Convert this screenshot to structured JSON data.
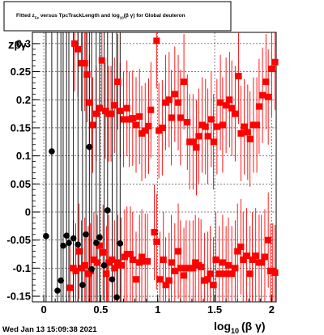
{
  "title": {
    "main": "Fitted  z",
    "sub": "Fe",
    "rest1": "  versus TpcTrackLength and log",
    "sub2": "10",
    "rest2": "(β γ) for Global deuteron"
  },
  "timestamp": "Wed Jan 13 15:09:38 2021",
  "colors": {
    "red": "#ff0000",
    "black": "#000000"
  },
  "chart_data": {
    "type": "scatter",
    "xlabel": "log10(β γ)",
    "xlabel_main": "log",
    "xlabel_sub": "10",
    "xlabel_rest": "(β γ)",
    "ylabel_main": "z",
    "ylabel_rest": "βγ",
    "xlim": [
      -0.1,
      2.04
    ],
    "ylim": [
      -0.16,
      0.32
    ],
    "x_ticks": [
      "0",
      "0.5",
      "1",
      "1.5",
      "2"
    ],
    "x_tick_values": [
      0,
      0.5,
      1,
      1.5,
      2
    ],
    "y_ticks": [
      "-0.15",
      "-0.1",
      "-0.05",
      "0",
      "0.05",
      "0.1",
      "0.15",
      "0.2",
      "0.25",
      "0.3"
    ],
    "y_tick_values": [
      -0.15,
      -0.1,
      -0.05,
      0,
      0.05,
      0.1,
      0.15,
      0.2,
      0.25,
      0.3
    ],
    "series": [
      {
        "color": "red",
        "points": [
          [
            0.27,
            0.3
          ],
          [
            0.3,
            0.29
          ],
          [
            0.33,
            0.265
          ],
          [
            0.36,
            0.265
          ],
          [
            0.38,
            0.245
          ],
          [
            0.4,
            0.195
          ],
          [
            0.43,
            0.155
          ],
          [
            0.46,
            0.175
          ],
          [
            0.49,
            0.185
          ],
          [
            0.51,
            0.27
          ],
          [
            0.54,
            0.18
          ],
          [
            0.57,
            0.175
          ],
          [
            0.59,
            0.175
          ],
          [
            0.62,
            0.19
          ],
          [
            0.65,
            0.232
          ],
          [
            0.67,
            0.18
          ],
          [
            0.7,
            0.165
          ],
          [
            0.73,
            0.185
          ],
          [
            0.75,
            0.165
          ],
          [
            0.78,
            0.167
          ],
          [
            0.81,
            0.155
          ],
          [
            0.84,
            0.17
          ],
          [
            0.86,
            0.14
          ],
          [
            0.89,
            0.145
          ],
          [
            0.92,
            0.153
          ],
          [
            0.94,
            0.182
          ],
          [
            0.99,
            0.305
          ],
          [
            1.01,
            0.145
          ],
          [
            1.04,
            0.15
          ],
          [
            1.07,
            0.195
          ],
          [
            1.1,
            0.2
          ],
          [
            1.12,
            0.168
          ],
          [
            1.15,
            0.21
          ],
          [
            1.18,
            0.195
          ],
          [
            1.2,
            0.168
          ],
          [
            1.23,
            0.232
          ],
          [
            1.26,
            0.16
          ],
          [
            1.28,
            0.125
          ],
          [
            1.31,
            0.125
          ],
          [
            1.34,
            0.115
          ],
          [
            1.36,
            0.135
          ],
          [
            1.39,
            0.155
          ],
          [
            1.42,
            0.152
          ],
          [
            1.44,
            0.135
          ],
          [
            1.47,
            0.165
          ],
          [
            1.49,
            0.125
          ],
          [
            1.52,
            0.152
          ],
          [
            1.55,
            0.195
          ],
          [
            1.57,
            0.155
          ],
          [
            1.6,
            0.19
          ],
          [
            1.63,
            0.2
          ],
          [
            1.65,
            0.185
          ],
          [
            1.68,
            0.175
          ],
          [
            1.71,
            0.242
          ],
          [
            1.73,
            0.14
          ],
          [
            1.76,
            0.152
          ],
          [
            1.79,
            0.142
          ],
          [
            1.81,
            0.13
          ],
          [
            1.84,
            0.155
          ],
          [
            1.87,
            0.155
          ],
          [
            1.89,
            0.188
          ],
          [
            1.92,
            0.208
          ],
          [
            1.95,
            0.232
          ],
          [
            1.97,
            0.205
          ],
          [
            2.0,
            0.255
          ],
          [
            2.03,
            0.267
          ],
          [
            0.23,
            -0.135
          ],
          [
            0.26,
            -0.1
          ],
          [
            0.28,
            -0.105
          ],
          [
            0.31,
            -0.07
          ],
          [
            0.33,
            -0.1
          ],
          [
            0.36,
            -0.095
          ],
          [
            0.39,
            -0.11
          ],
          [
            0.41,
            -0.105
          ],
          [
            0.44,
            -0.085
          ],
          [
            0.47,
            -0.09
          ],
          [
            0.49,
            -0.06
          ],
          [
            0.52,
            -0.072
          ],
          [
            0.55,
            -0.11
          ],
          [
            0.57,
            -0.09
          ],
          [
            0.6,
            -0.085
          ],
          [
            0.62,
            -0.1
          ],
          [
            0.65,
            -0.09
          ],
          [
            0.68,
            -0.095
          ],
          [
            0.71,
            -0.08
          ],
          [
            0.73,
            -0.075
          ],
          [
            0.76,
            -0.075
          ],
          [
            0.78,
            -0.085
          ],
          [
            0.81,
            -0.12
          ],
          [
            0.84,
            -0.09
          ],
          [
            0.86,
            -0.08
          ],
          [
            0.89,
            -0.088
          ],
          [
            0.91,
            -0.088
          ],
          [
            0.97,
            -0.036
          ],
          [
            0.99,
            -0.053
          ],
          [
            1.02,
            -0.12
          ],
          [
            1.05,
            -0.085
          ],
          [
            1.07,
            -0.13
          ],
          [
            1.1,
            -0.122
          ],
          [
            1.12,
            -0.09
          ],
          [
            1.15,
            -0.105
          ],
          [
            1.18,
            -0.07
          ],
          [
            1.2,
            -0.1
          ],
          [
            1.23,
            -0.113
          ],
          [
            1.25,
            -0.1
          ],
          [
            1.28,
            -0.1
          ],
          [
            1.31,
            -0.1
          ],
          [
            1.33,
            -0.09
          ],
          [
            1.36,
            -0.095
          ],
          [
            1.38,
            -0.098
          ],
          [
            1.41,
            -0.122
          ],
          [
            1.44,
            -0.12
          ],
          [
            1.46,
            -0.11
          ],
          [
            1.49,
            -0.13
          ],
          [
            1.51,
            -0.085
          ],
          [
            1.54,
            -0.11
          ],
          [
            1.57,
            -0.09
          ],
          [
            1.6,
            -0.11
          ],
          [
            1.62,
            -0.095
          ],
          [
            1.65,
            -0.11
          ],
          [
            1.68,
            -0.1
          ],
          [
            1.7,
            -0.07
          ],
          [
            1.73,
            -0.062
          ],
          [
            1.75,
            -0.085
          ],
          [
            1.78,
            -0.078
          ],
          [
            1.81,
            -0.11
          ],
          [
            1.83,
            -0.085
          ],
          [
            1.86,
            -0.078
          ],
          [
            1.89,
            -0.09
          ],
          [
            1.91,
            -0.09
          ],
          [
            1.94,
            -0.08
          ],
          [
            1.97,
            -0.05
          ],
          [
            1.99,
            -0.105
          ],
          [
            2.01,
            -0.105
          ],
          [
            2.03,
            -0.108
          ]
        ]
      },
      {
        "color": "black",
        "points": [
          [
            0.02,
            -0.043
          ],
          [
            0.07,
            0.108
          ],
          [
            0.12,
            -0.14
          ],
          [
            0.15,
            -0.122
          ],
          [
            0.17,
            -0.06
          ],
          [
            0.2,
            -0.042
          ],
          [
            0.22,
            -0.055
          ],
          [
            0.26,
            -0.047
          ],
          [
            0.3,
            -0.058
          ],
          [
            0.34,
            -0.13
          ],
          [
            0.37,
            -0.04
          ],
          [
            0.4,
            0.116
          ],
          [
            0.42,
            -0.102
          ],
          [
            0.46,
            -0.055
          ],
          [
            0.49,
            -0.045
          ],
          [
            0.53,
            -0.095
          ],
          [
            0.56,
            0.003
          ],
          [
            0.6,
            -0.12
          ],
          [
            0.64,
            -0.152
          ],
          [
            0.67,
            -0.056
          ]
        ]
      }
    ]
  }
}
